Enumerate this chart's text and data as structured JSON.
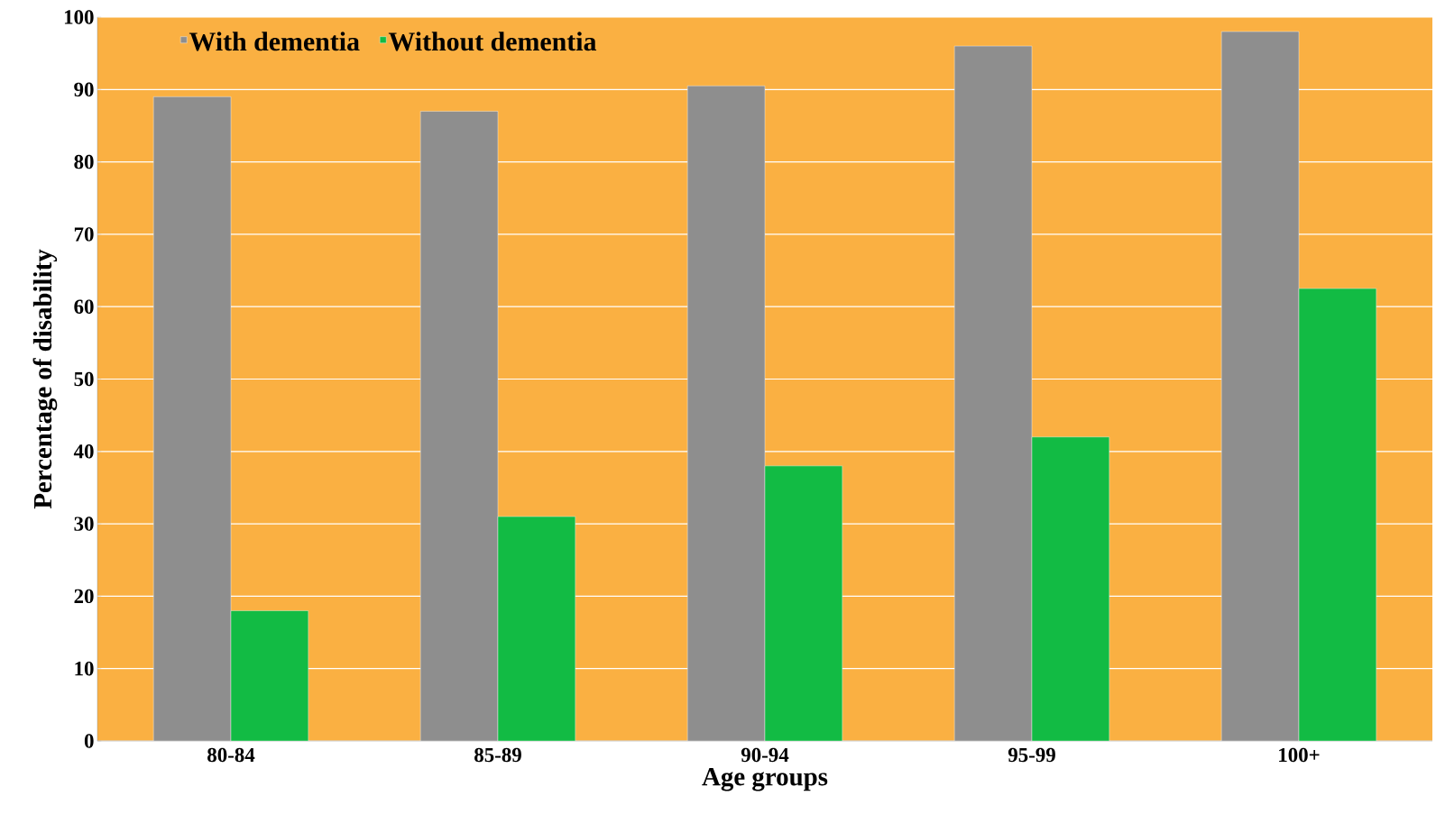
{
  "chart_data": {
    "type": "bar",
    "xlabel": "Age groups",
    "ylabel": "Percentage of disability",
    "categories": [
      "80-84",
      "85-89",
      "90-94",
      "95-99",
      "100+"
    ],
    "series": [
      {
        "name": "With dementia",
        "color": "#8e8e8e",
        "values": [
          89,
          87,
          90.5,
          96,
          98
        ]
      },
      {
        "name": "Without dementia",
        "color": "#12bb44",
        "values": [
          18,
          31,
          38,
          42,
          62.5
        ]
      }
    ],
    "ylim": [
      0,
      100
    ],
    "yticks": [
      0,
      10,
      20,
      30,
      40,
      50,
      60,
      70,
      80,
      90,
      100
    ],
    "grid": "y",
    "legend": "top left"
  }
}
